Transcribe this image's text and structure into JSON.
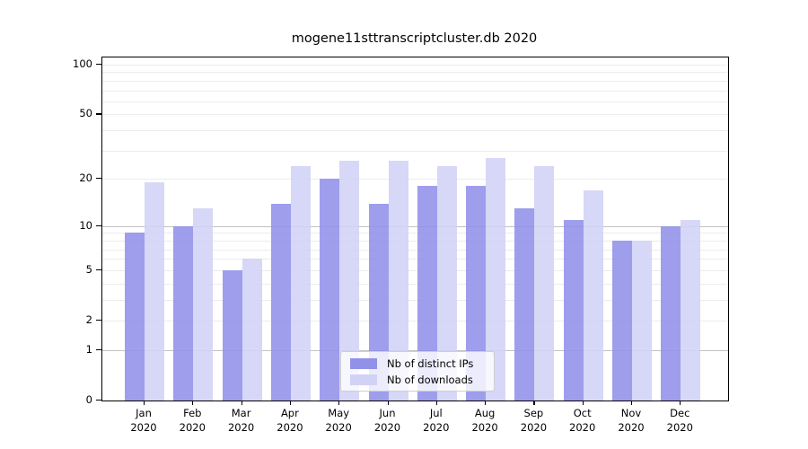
{
  "title": "mogene11sttranscriptcluster.db 2020",
  "chart_data": {
    "type": "bar",
    "title": "mogene11sttranscriptcluster.db 2020",
    "months": [
      "Jan",
      "Feb",
      "Mar",
      "Apr",
      "May",
      "Jun",
      "Jul",
      "Aug",
      "Sep",
      "Oct",
      "Nov",
      "Dec"
    ],
    "year": "2020",
    "categories": [
      "Jan 2020",
      "Feb 2020",
      "Mar 2020",
      "Apr 2020",
      "May 2020",
      "Jun 2020",
      "Jul 2020",
      "Aug 2020",
      "Sep 2020",
      "Oct 2020",
      "Nov 2020",
      "Dec 2020"
    ],
    "series": [
      {
        "name": "Nb of distinct IPs",
        "color": "#9191ea",
        "values": [
          9,
          10,
          5,
          14,
          20,
          14,
          18,
          18,
          13,
          11,
          8,
          10
        ]
      },
      {
        "name": "Nb of downloads",
        "color": "#d2d2f6",
        "values": [
          19,
          13,
          6,
          24,
          26,
          26,
          24,
          27,
          24,
          17,
          8,
          11
        ]
      }
    ],
    "y_scale": "log1p",
    "ylim": [
      0,
      112
    ],
    "y_tick_labels": [
      "100",
      "50",
      "20",
      "10",
      "5",
      "2",
      "1",
      "0"
    ],
    "y_tick_values": [
      100,
      50,
      20,
      10,
      5,
      2,
      1,
      0
    ],
    "y_gridlines_major": [
      1,
      10
    ],
    "y_gridlines_minor": [
      2,
      3,
      4,
      5,
      6,
      7,
      8,
      9,
      20,
      30,
      40,
      50,
      60,
      70,
      80,
      90,
      100
    ],
    "grid": true,
    "legend_position": "bottom-center-inside",
    "xlabel": "",
    "ylabel": ""
  },
  "legend": {
    "items": [
      {
        "label": "Nb of distinct IPs",
        "color": "#9191ea"
      },
      {
        "label": "Nb of downloads",
        "color": "#d2d2f6"
      }
    ]
  },
  "colors": {
    "bar_distinct_ips": "#a3a3ee",
    "bar_downloads": "#d8d8f7",
    "grid_minor": "#ececec",
    "grid_major": "#c2c2c2",
    "spine": "#000000",
    "background": "#ffffff"
  }
}
